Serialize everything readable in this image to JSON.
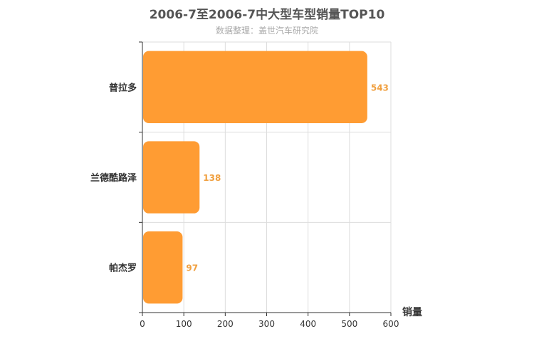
{
  "chart_data": {
    "type": "bar",
    "orientation": "horizontal",
    "title": "2006-7至2006-7中大型车型销量TOP10",
    "subtitle": "数据整理：盖世汽车研究院",
    "categories": [
      "普拉多",
      "兰德酷路泽",
      "帕杰罗"
    ],
    "values": [
      543,
      138,
      97
    ],
    "xlabel": "销量",
    "ylabel": "",
    "xlim": [
      0,
      600
    ],
    "xticks": [
      0,
      100,
      200,
      300,
      400,
      500,
      600
    ],
    "grid": true,
    "bar_color": "#ff9c33",
    "label_color": "#f0a040"
  }
}
